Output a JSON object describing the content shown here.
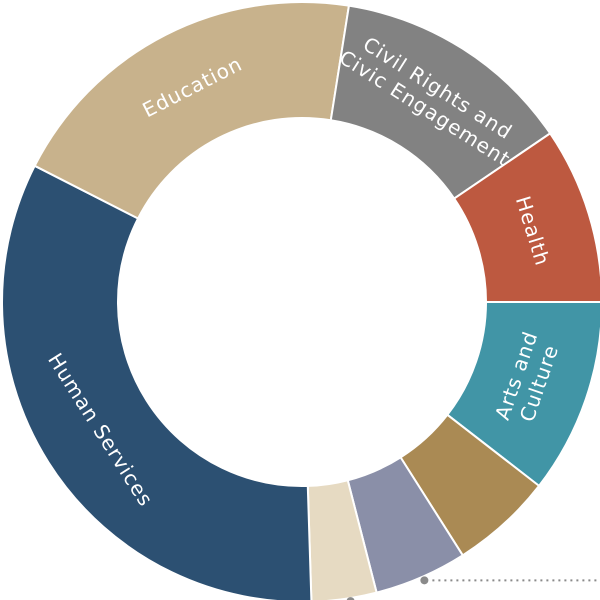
{
  "chart_data": {
    "type": "donut",
    "title": "",
    "categories": [
      "Arts and Culture",
      "",
      "",
      "",
      "Human Services",
      "Education",
      "Civil Rights and Civic Engagement",
      "Health"
    ],
    "label_lines": [
      [
        "Arts and",
        "Culture"
      ],
      [],
      [],
      [],
      [
        "Human Services"
      ],
      [
        "Education"
      ],
      [
        "Civil Rights and",
        "Civic Engagement"
      ],
      [
        "Health"
      ]
    ],
    "values": [
      10.5,
      5.5,
      5.0,
      3.5,
      33.0,
      20.0,
      13.0,
      9.5
    ],
    "colors": [
      "#4195a6",
      "#aa8a54",
      "#8a8fa8",
      "#e6dac2",
      "#2c5072",
      "#c8b28c",
      "#828282",
      "#bd5940"
    ],
    "callout_segments": [
      2,
      3
    ],
    "legend": "none"
  }
}
